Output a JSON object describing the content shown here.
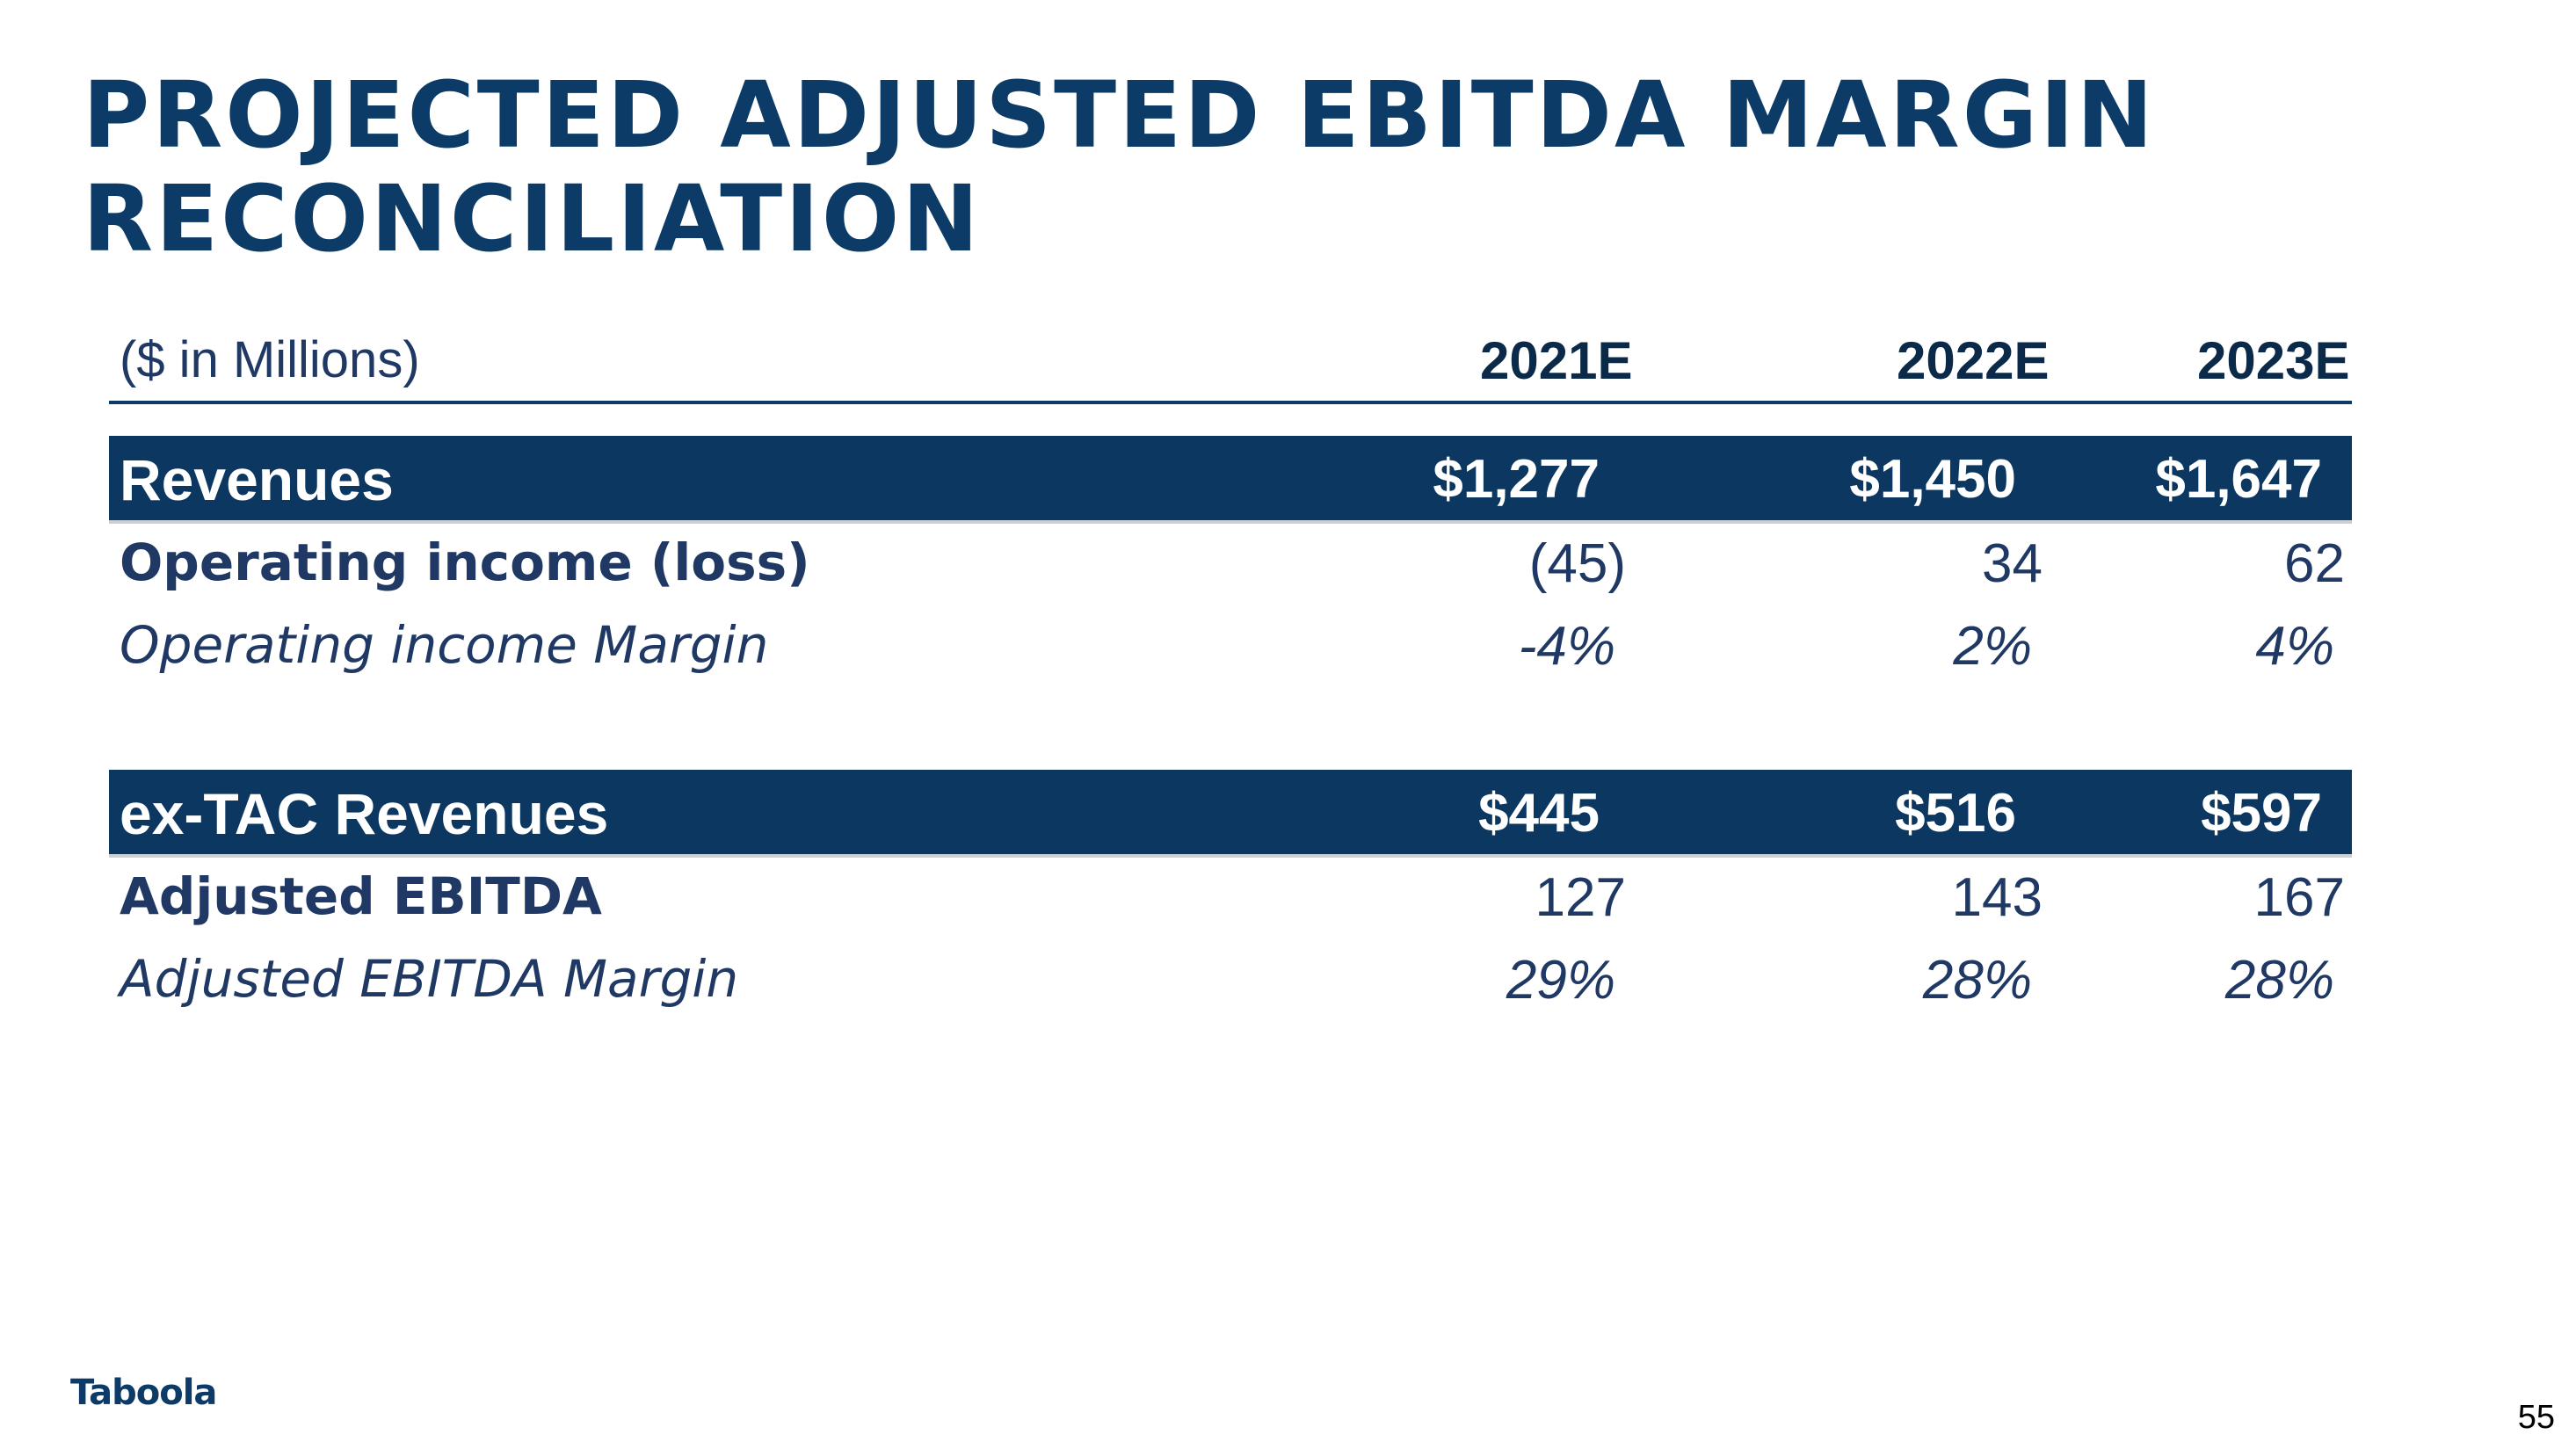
{
  "title": {
    "line1": "PROJECTED ADJUSTED EBITDA MARGIN",
    "line2": "RECONCILIATION"
  },
  "table": {
    "unit_label": "($ in Millions)",
    "years": [
      "2021E",
      "2022E",
      "2023E"
    ],
    "sections": [
      {
        "band_label": "Revenues",
        "band_values": [
          "$1,277",
          "$1,450",
          "$1,647"
        ],
        "row1_label": "Operating income (loss)",
        "row1_values": [
          "(45)",
          "34",
          "62"
        ],
        "row2_label": "Operating income Margin",
        "row2_values": [
          "-4%",
          "2%",
          "4%"
        ]
      },
      {
        "band_label": "ex-TAC Revenues",
        "band_values": [
          "$445",
          "$516",
          "$597"
        ],
        "row1_label": "Adjusted EBITDA",
        "row1_values": [
          "127",
          "143",
          "167"
        ],
        "row2_label": "Adjusted EBITDA Margin",
        "row2_values": [
          "29%",
          "28%",
          "28%"
        ]
      }
    ]
  },
  "footer": {
    "logo_text": "Taboola",
    "page_number": "55"
  },
  "colors": {
    "brand_navy": "#0b3b66",
    "band_fill": "#0b3760",
    "text_navy": "#1f3864"
  }
}
